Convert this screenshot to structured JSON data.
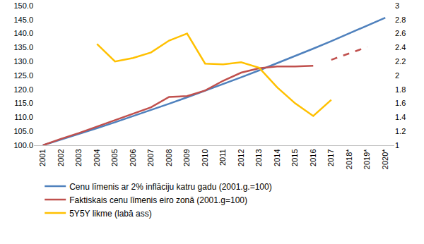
{
  "chart_data": {
    "type": "line",
    "categories": [
      "2001",
      "2002",
      "2003",
      "2004",
      "2005",
      "2006",
      "2007",
      "2008",
      "2009",
      "2010",
      "2011",
      "2012",
      "2013",
      "2014",
      "2015",
      "2016",
      "2017",
      "2018*",
      "2019*",
      "2020*"
    ],
    "series": [
      {
        "name": "Cenu līmenis ar 2% inflāciju katru gadu (2001.g.=100)",
        "color": "#4f81bd",
        "line_style": "solid",
        "values": [
          100,
          102,
          104.04,
          106.12,
          108.24,
          110.41,
          112.62,
          114.87,
          117.17,
          119.51,
          121.9,
          124.34,
          126.82,
          129.36,
          131.95,
          134.59,
          137.28,
          140.02,
          142.82,
          145.68
        ]
      },
      {
        "name": "Faktiskais cenu līmenis eiro zonā (2001.g=100)",
        "color": "#c0504d",
        "line_style": "solid",
        "values": [
          100,
          102.3,
          104.4,
          106.7,
          109.1,
          111.5,
          113.6,
          117.3,
          117.6,
          119.6,
          123.1,
          126.0,
          127.6,
          128.2,
          128.2,
          128.5,
          null,
          null,
          null,
          null
        ]
      },
      {
        "color": "#c0504d",
        "line_style": "dash",
        "values": [
          null,
          null,
          null,
          null,
          null,
          null,
          null,
          null,
          null,
          null,
          null,
          null,
          null,
          null,
          null,
          null,
          130.6,
          132.8,
          135.2,
          null
        ]
      },
      {
        "name": "5Y5Y likme (labā ass)",
        "color": "#ffc000",
        "line_style": "solid",
        "axis": "y2",
        "values": [
          null,
          null,
          null,
          2.45,
          2.2,
          2.25,
          2.33,
          2.5,
          2.6,
          2.17,
          2.16,
          2.19,
          2.11,
          1.83,
          1.6,
          1.42,
          1.65,
          null,
          null,
          null
        ]
      }
    ],
    "ylim": [
      100,
      150
    ],
    "yticks": [
      {
        "value": 100,
        "label": "100.0"
      },
      {
        "value": 105,
        "label": "105.0"
      },
      {
        "value": 110,
        "label": "110.0"
      },
      {
        "value": 115,
        "label": "115.0"
      },
      {
        "value": 120,
        "label": "120.0"
      },
      {
        "value": 125,
        "label": "125.0"
      },
      {
        "value": 130,
        "label": "130.0"
      },
      {
        "value": 135,
        "label": "135.0"
      },
      {
        "value": 140,
        "label": "140.0"
      },
      {
        "value": 145,
        "label": "145.0"
      },
      {
        "value": 150,
        "label": "150.0"
      }
    ],
    "y2lim": [
      1,
      3
    ],
    "y2ticks": [
      1,
      1.2,
      1.4,
      1.6,
      1.8,
      2,
      2.2,
      2.4,
      2.6,
      2.8,
      3
    ],
    "grid": false,
    "legend": "bottom"
  }
}
